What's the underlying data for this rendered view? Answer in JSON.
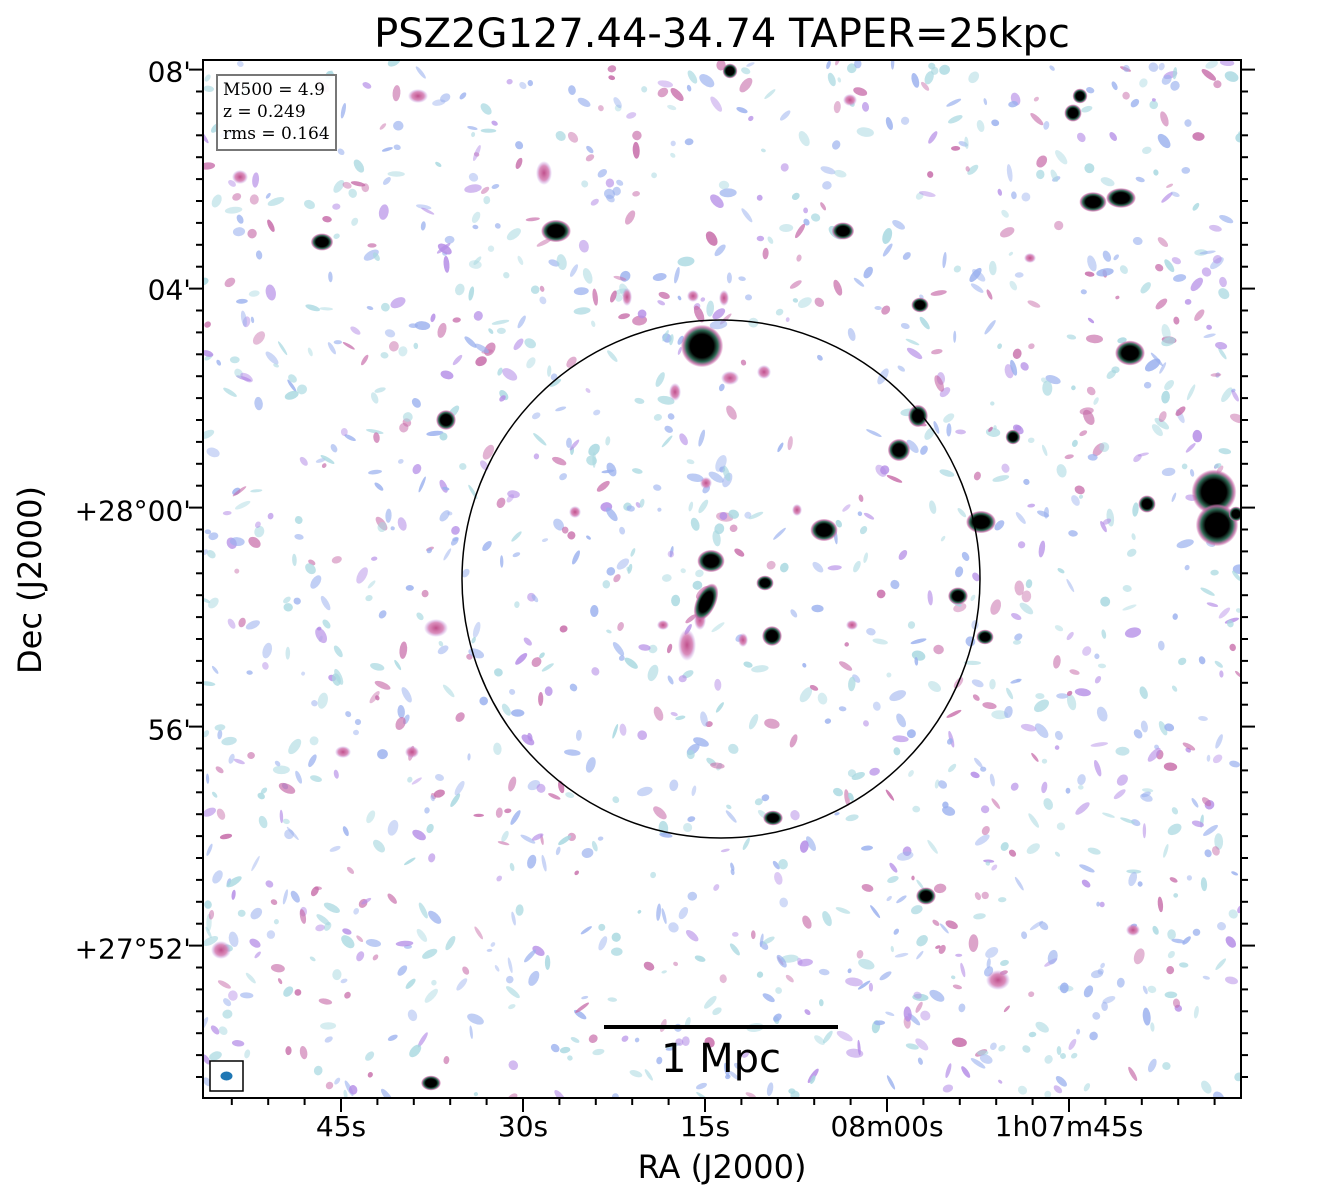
{
  "figure": {
    "title": "PSZ2G127.44-34.74 TAPER=25kpc",
    "xlabel": "RA (J2000)",
    "ylabel": "Dec (J2000)",
    "x_ticks": [
      "45s",
      "30s",
      "15s",
      "08m00s",
      "1h07m45s"
    ],
    "y_ticks": [
      "08'",
      "04'",
      "+28°00'",
      "56'",
      "+27°52'"
    ],
    "info": {
      "line1": "M500 = 4.9",
      "line2": "z = 0.249",
      "line3": "rms = 0.164"
    },
    "scalebar_label": "1 Mpc",
    "colors": {
      "background": "#ffffff",
      "noise_light": "#a8d8e0",
      "noise_blue": "#9ab0ee",
      "noise_violet": "#b48ce6",
      "noise_pink": "#c66aa8",
      "source_core": "#000000",
      "source_ring": "#2e6b55",
      "beam": "#1f77b4"
    }
  }
}
